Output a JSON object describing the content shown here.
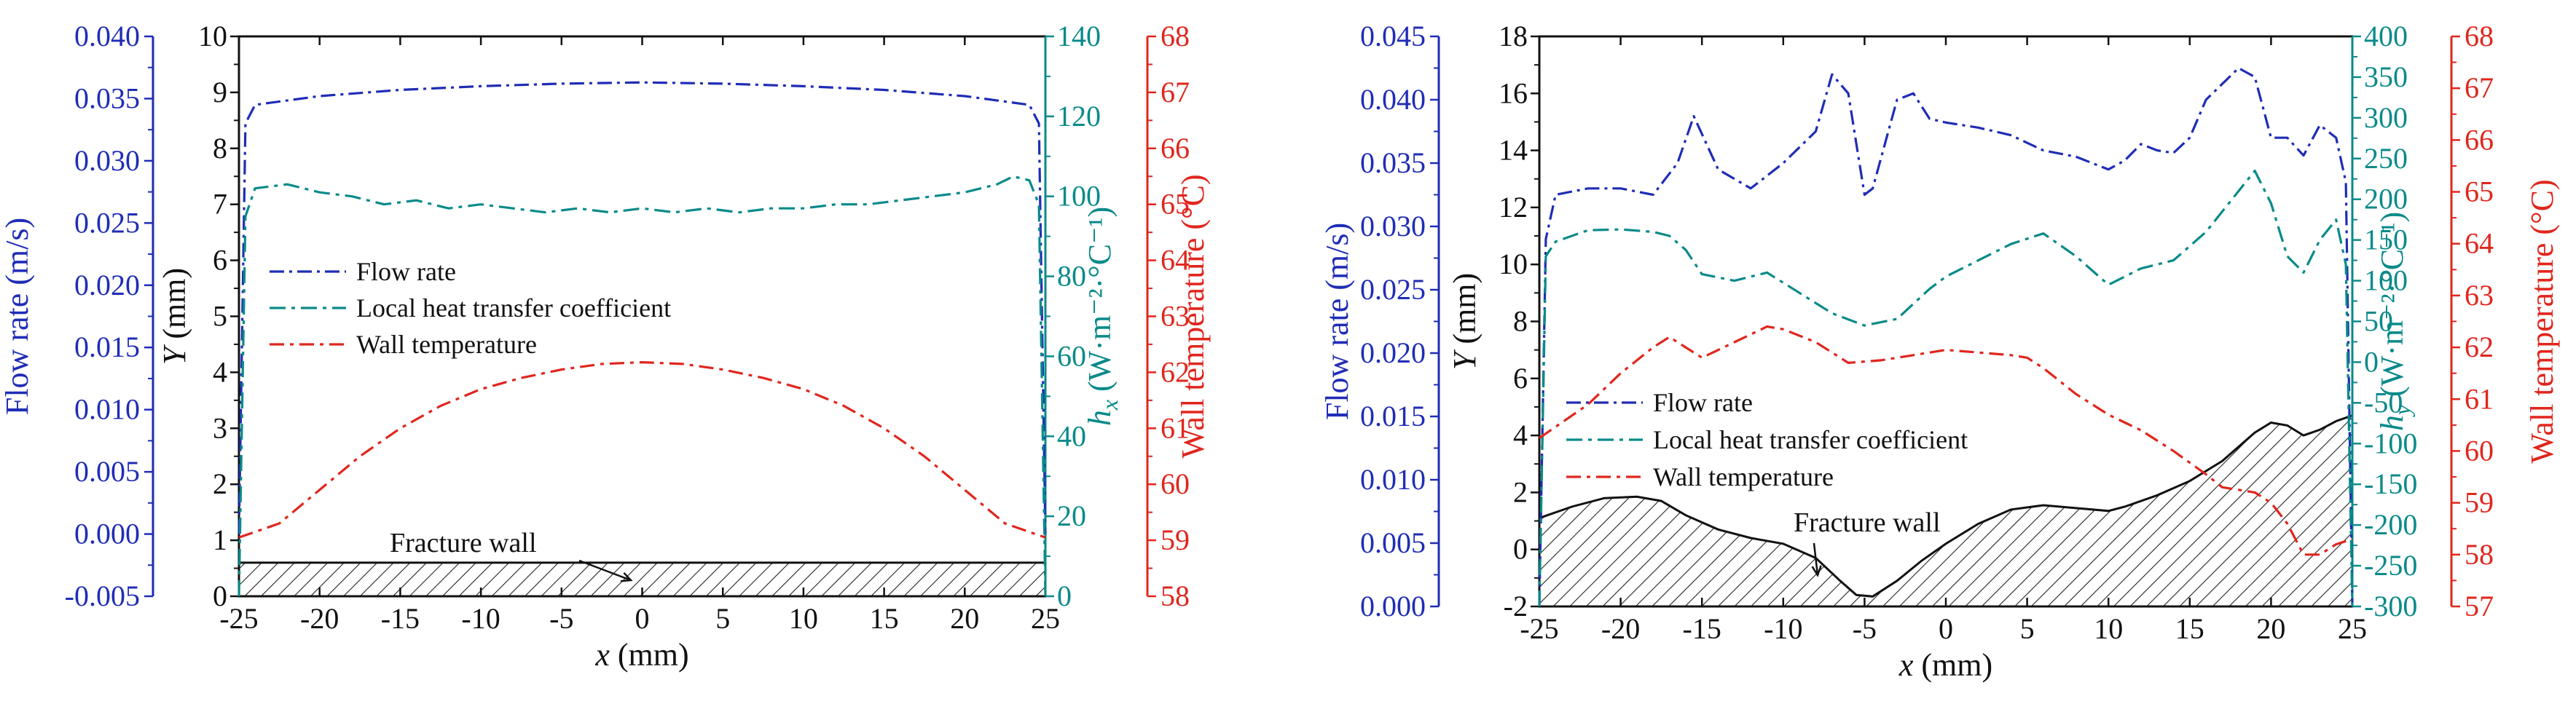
{
  "colors": {
    "blue": "#1f2db5",
    "teal": "#0a8a8a",
    "red": "#e0261d",
    "black": "#111111"
  },
  "chart_data": [
    {
      "type": "line",
      "panel": "left",
      "xlabel": "x (mm)",
      "xlim": [
        -25,
        25
      ],
      "x_ticks": [
        "-25",
        "-20",
        "-15",
        "-10",
        "-5",
        "0",
        "5",
        "10",
        "15",
        "20",
        "25"
      ],
      "axes": [
        {
          "id": "flow",
          "side": "left-outer",
          "label": "Flow rate (m/s)",
          "lim": [
            -0.005,
            0.04
          ],
          "ticks": [
            "-0.005",
            "0.000",
            "0.005",
            "0.010",
            "0.015",
            "0.020",
            "0.025",
            "0.030",
            "0.035",
            "0.040"
          ],
          "color": "blue"
        },
        {
          "id": "Y",
          "side": "left-inner",
          "label": "Y (mm)",
          "lim": [
            0,
            10
          ],
          "ticks": [
            "0",
            "1",
            "2",
            "3",
            "4",
            "5",
            "6",
            "7",
            "8",
            "9",
            "10"
          ],
          "color": "black"
        },
        {
          "id": "h",
          "side": "right-inner",
          "label": "hx (W·m⁻²·°C⁻¹)",
          "lim": [
            0,
            140
          ],
          "ticks": [
            "0",
            "20",
            "40",
            "60",
            "80",
            "100",
            "120",
            "140"
          ],
          "color": "teal"
        },
        {
          "id": "T",
          "side": "right-outer",
          "label": "Wall temperature (°C)",
          "lim": [
            58,
            68
          ],
          "ticks": [
            "58",
            "59",
            "60",
            "61",
            "62",
            "63",
            "64",
            "65",
            "66",
            "67",
            "68"
          ],
          "color": "red"
        }
      ],
      "series": [
        {
          "name": "Flow rate",
          "axis": "flow",
          "color": "blue",
          "x": [
            -25,
            -24.6,
            -24,
            -20,
            -15,
            -10,
            -5,
            0,
            5,
            10,
            15,
            20,
            24,
            24.6,
            25
          ],
          "values": [
            0.0,
            0.033,
            0.0345,
            0.0352,
            0.0357,
            0.036,
            0.0362,
            0.0363,
            0.0362,
            0.036,
            0.0357,
            0.0352,
            0.0345,
            0.033,
            0.0
          ]
        },
        {
          "name": "Local heat transfer coefficient",
          "axis": "h",
          "color": "teal",
          "x": [
            -25,
            -24.6,
            -24,
            -22,
            -20,
            -18,
            -16,
            -14,
            -12,
            -10,
            -8,
            -6,
            -4,
            -2,
            0,
            2,
            4,
            6,
            8,
            10,
            12,
            14,
            16,
            18,
            20,
            22,
            23,
            24,
            24.6,
            25
          ],
          "values": [
            0,
            95,
            102,
            103,
            101,
            100,
            98,
            99,
            97,
            98,
            97,
            96,
            97,
            96,
            97,
            96,
            97,
            96,
            97,
            97,
            98,
            98,
            99,
            100,
            101,
            103,
            105,
            104,
            98,
            0
          ]
        },
        {
          "name": "Wall temperature",
          "axis": "T",
          "color": "red",
          "x": [
            -25,
            -22.5,
            -20,
            -17.5,
            -15,
            -12.5,
            -10,
            -7.5,
            -5,
            -2.5,
            0,
            2.5,
            5,
            7.5,
            10,
            12.5,
            15,
            17.5,
            20,
            22.5,
            25
          ],
          "values": [
            59.05,
            59.3,
            59.9,
            60.5,
            61.0,
            61.4,
            61.7,
            61.9,
            62.05,
            62.15,
            62.18,
            62.15,
            62.05,
            61.9,
            61.7,
            61.4,
            61.0,
            60.5,
            59.9,
            59.3,
            59.05
          ]
        },
        {
          "name": "Fracture wall",
          "axis": "Y",
          "color": "black",
          "x": [
            -25,
            25
          ],
          "values": [
            0.6,
            0.6
          ]
        }
      ],
      "legend": {
        "position": "middle-left",
        "entries": [
          "Flow rate",
          "Local heat transfer coefficient",
          "Wall temperature"
        ]
      },
      "annotations": [
        {
          "text": "Fracture wall"
        }
      ]
    },
    {
      "type": "line",
      "panel": "right",
      "xlabel": "x (mm)",
      "xlim": [
        -25,
        25
      ],
      "x_ticks": [
        "-25",
        "-20",
        "-15",
        "-10",
        "-5",
        "0",
        "5",
        "10",
        "15",
        "20",
        "25"
      ],
      "axes": [
        {
          "id": "flow",
          "side": "left-outer",
          "label": "Flow rate (m/s)",
          "lim": [
            0,
            0.045
          ],
          "ticks": [
            "0.000",
            "0.005",
            "0.010",
            "0.015",
            "0.020",
            "0.025",
            "0.030",
            "0.035",
            "0.040",
            "0.045"
          ],
          "color": "blue"
        },
        {
          "id": "Y",
          "side": "left-inner",
          "label": "Y (mm)",
          "lim": [
            -2,
            18
          ],
          "ticks": [
            "-2",
            "0",
            "2",
            "4",
            "6",
            "8",
            "10",
            "12",
            "14",
            "16",
            "18"
          ],
          "color": "black"
        },
        {
          "id": "h",
          "side": "right-inner",
          "label": "hy (W·m⁻²·°C⁻¹)",
          "lim": [
            -300,
            400
          ],
          "ticks": [
            "-300",
            "-250",
            "-200",
            "-150",
            "-100",
            "-50",
            "0",
            "50",
            "100",
            "150",
            "200",
            "250",
            "300",
            "350",
            "400"
          ],
          "color": "teal"
        },
        {
          "id": "T",
          "side": "right-outer",
          "label": "Wall temperature (°C)",
          "lim": [
            57,
            68
          ],
          "ticks": [
            "57",
            "58",
            "59",
            "60",
            "61",
            "62",
            "63",
            "64",
            "65",
            "66",
            "67",
            "68"
          ],
          "color": "red"
        }
      ],
      "series": [
        {
          "name": "Flow rate",
          "axis": "flow",
          "color": "blue",
          "x": [
            -25,
            -24.6,
            -24,
            -22,
            -20,
            -18,
            -16.5,
            -15.5,
            -14,
            -12,
            -11,
            -10,
            -8,
            -7,
            -6,
            -5.5,
            -5,
            -4.5,
            -3,
            -2,
            -1,
            0,
            2,
            4,
            6,
            8,
            10,
            11,
            12,
            13,
            14,
            15,
            16,
            18,
            19,
            20,
            21,
            22,
            23,
            24,
            24.6,
            25
          ],
          "values": [
            0.0,
            0.029,
            0.0325,
            0.033,
            0.033,
            0.0325,
            0.035,
            0.0387,
            0.0345,
            0.033,
            0.034,
            0.035,
            0.0375,
            0.042,
            0.0405,
            0.0365,
            0.0325,
            0.033,
            0.04,
            0.0405,
            0.0385,
            0.0382,
            0.0378,
            0.0372,
            0.036,
            0.0355,
            0.0345,
            0.0352,
            0.0365,
            0.036,
            0.0358,
            0.037,
            0.04,
            0.0425,
            0.0418,
            0.037,
            0.037,
            0.0356,
            0.038,
            0.037,
            0.0335,
            0.0
          ]
        },
        {
          "name": "Local heat transfer coefficient",
          "axis": "h",
          "color": "teal",
          "x": [
            -25,
            -24.6,
            -24,
            -22,
            -20,
            -18,
            -17,
            -16,
            -15,
            -13,
            -11,
            -9,
            -7,
            -5,
            -3,
            -1,
            0,
            2,
            4,
            6,
            8,
            10,
            12,
            14,
            16,
            18,
            19,
            20,
            21,
            22,
            23,
            24,
            24.6,
            25
          ],
          "values": [
            -300,
            130,
            148,
            162,
            163,
            160,
            155,
            138,
            108,
            100,
            110,
            85,
            60,
            45,
            53,
            90,
            105,
            125,
            145,
            158,
            130,
            95,
            115,
            125,
            160,
            210,
            235,
            195,
            130,
            110,
            150,
            175,
            120,
            -300
          ]
        },
        {
          "name": "Wall temperature",
          "axis": "T",
          "color": "red",
          "x": [
            -25,
            -22,
            -20,
            -18,
            -17,
            -16,
            -15,
            -13,
            -11,
            -10,
            -8,
            -6,
            -4,
            -2,
            0,
            2,
            4,
            5,
            6,
            8,
            10,
            12,
            14,
            16,
            17,
            18,
            19,
            20,
            21,
            22,
            23,
            24,
            25
          ],
          "values": [
            60.25,
            60.9,
            61.5,
            62.0,
            62.2,
            62.0,
            61.8,
            62.1,
            62.4,
            62.35,
            62.1,
            61.7,
            61.75,
            61.85,
            61.95,
            61.9,
            61.85,
            61.8,
            61.6,
            61.1,
            60.7,
            60.4,
            60.0,
            59.55,
            59.3,
            59.25,
            59.2,
            59.0,
            58.6,
            58.0,
            58.0,
            58.2,
            58.3
          ]
        },
        {
          "name": "Fracture wall",
          "axis": "Y",
          "color": "black",
          "x": [
            -25,
            -23,
            -21,
            -19,
            -17.5,
            -16,
            -14,
            -12,
            -10,
            -8,
            -6.5,
            -5.5,
            -4.5,
            -3,
            -1.5,
            0,
            2,
            4,
            6,
            8,
            10,
            11,
            13,
            15,
            17,
            19,
            20,
            21,
            22,
            23,
            24,
            25
          ],
          "values": [
            1.1,
            1.5,
            1.8,
            1.85,
            1.7,
            1.2,
            0.7,
            0.4,
            0.2,
            -0.3,
            -1.1,
            -1.6,
            -1.65,
            -1.1,
            -0.4,
            0.2,
            0.9,
            1.4,
            1.55,
            1.45,
            1.35,
            1.5,
            1.9,
            2.4,
            3.1,
            4.1,
            4.45,
            4.35,
            4.0,
            4.2,
            4.5,
            4.7
          ]
        }
      ],
      "legend": {
        "position": "bottom-left",
        "entries": [
          "Flow rate",
          "Local heat transfer coefficient",
          "Wall temperature"
        ]
      },
      "annotations": [
        {
          "text": "Fracture wall"
        }
      ]
    }
  ]
}
